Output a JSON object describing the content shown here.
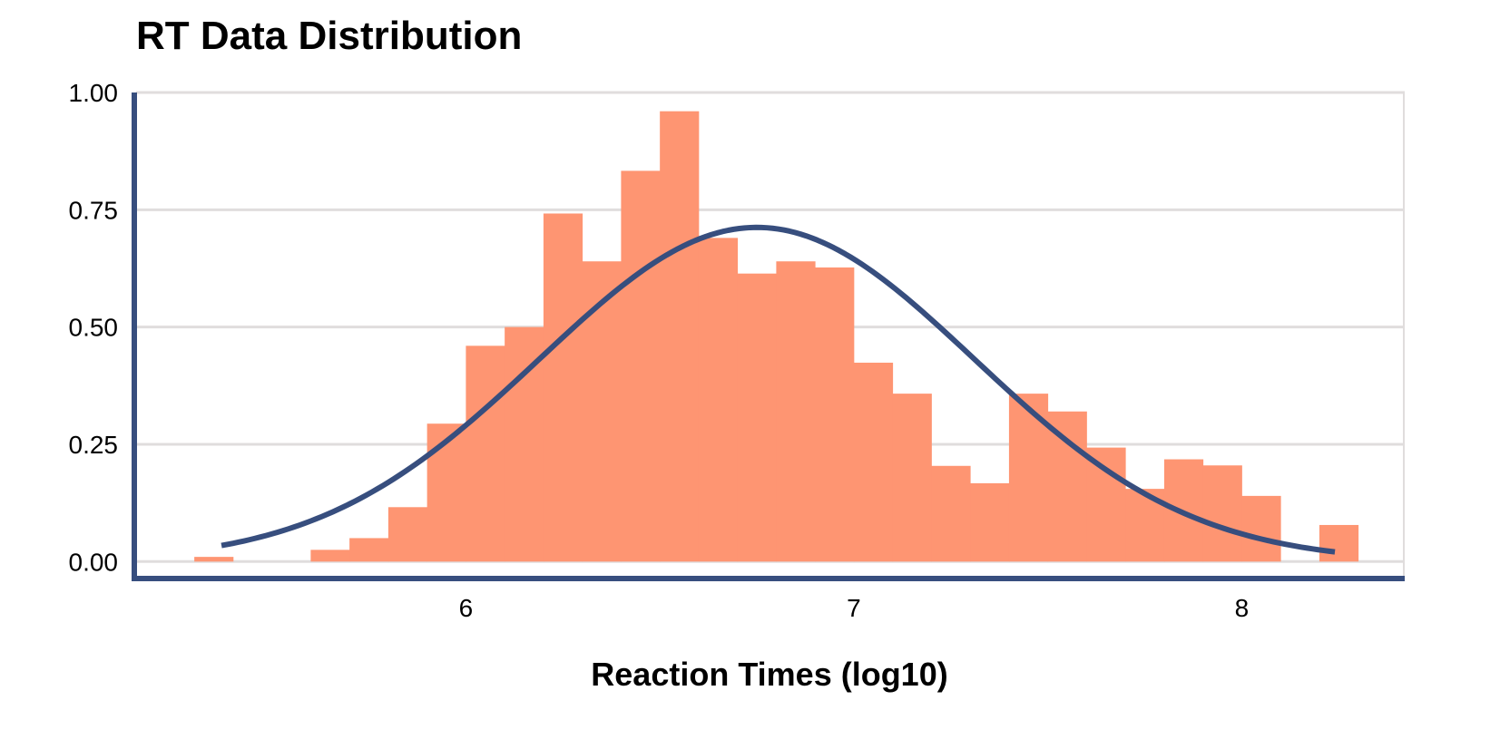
{
  "chart_data": {
    "type": "bar",
    "title": "RT Data Distribution",
    "xlabel": "Reaction Times (log10)",
    "ylabel": "",
    "xlim": [
      5.15,
      8.42
    ],
    "ylim": [
      -0.04,
      1.0
    ],
    "x_ticks": [
      {
        "value": 6,
        "label": "6"
      },
      {
        "value": 7,
        "label": "7"
      },
      {
        "value": 8,
        "label": "8"
      }
    ],
    "y_ticks": [
      {
        "value": 0.0,
        "label": "0.00"
      },
      {
        "value": 0.25,
        "label": "0.25"
      },
      {
        "value": 0.5,
        "label": "0.50"
      },
      {
        "value": 0.75,
        "label": "0.75"
      },
      {
        "value": 1.0,
        "label": "1.00"
      }
    ],
    "grid": true,
    "bin_width": 0.0996,
    "bins": [
      {
        "x0": 5.3,
        "value": 0.01
      },
      {
        "x0": 5.4,
        "value": 0.0
      },
      {
        "x0": 5.5,
        "value": 0.0
      },
      {
        "x0": 5.6,
        "value": 0.025
      },
      {
        "x0": 5.7,
        "value": 0.05
      },
      {
        "x0": 5.8,
        "value": 0.116
      },
      {
        "x0": 5.9,
        "value": 0.294
      },
      {
        "x0": 6.0,
        "value": 0.46
      },
      {
        "x0": 6.1,
        "value": 0.5
      },
      {
        "x0": 6.2,
        "value": 0.742
      },
      {
        "x0": 6.3,
        "value": 0.64
      },
      {
        "x0": 6.4,
        "value": 0.833
      },
      {
        "x0": 6.5,
        "value": 0.96
      },
      {
        "x0": 6.6,
        "value": 0.69
      },
      {
        "x0": 6.7,
        "value": 0.614
      },
      {
        "x0": 6.8,
        "value": 0.64
      },
      {
        "x0": 6.9,
        "value": 0.627
      },
      {
        "x0": 7.0,
        "value": 0.424
      },
      {
        "x0": 7.1,
        "value": 0.358
      },
      {
        "x0": 7.2,
        "value": 0.204
      },
      {
        "x0": 7.3,
        "value": 0.167
      },
      {
        "x0": 7.4,
        "value": 0.358
      },
      {
        "x0": 7.5,
        "value": 0.32
      },
      {
        "x0": 7.6,
        "value": 0.243
      },
      {
        "x0": 7.7,
        "value": 0.155
      },
      {
        "x0": 7.8,
        "value": 0.218
      },
      {
        "x0": 7.9,
        "value": 0.205
      },
      {
        "x0": 8.0,
        "value": 0.14
      },
      {
        "x0": 8.1,
        "value": 0.0
      },
      {
        "x0": 8.2,
        "value": 0.078
      }
    ],
    "density_curve": {
      "type": "normal",
      "mean": 6.75,
      "sd": 0.56,
      "x_start": 5.37,
      "x_end": 8.24
    },
    "colors": {
      "bars": "#FE9572",
      "curve": "#374E7E",
      "axis": "#374E7E",
      "grid": "#E0DDDD"
    }
  }
}
